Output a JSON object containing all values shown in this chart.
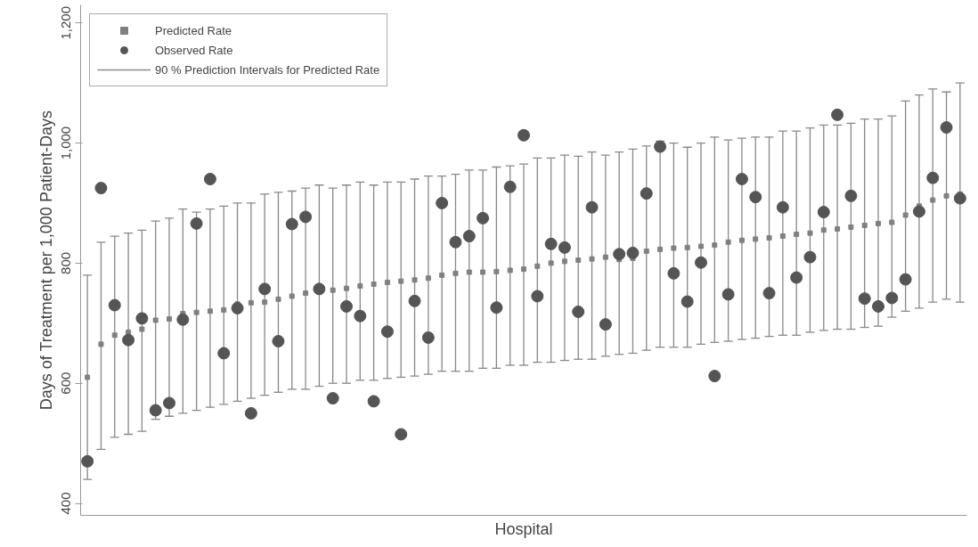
{
  "chart_data": {
    "type": "scatter",
    "xlabel": "Hospital",
    "ylabel": "Days of Treatment per 1,000 Patient-Days",
    "categories": [
      null,
      null,
      null,
      null,
      null,
      null,
      null,
      null,
      null,
      null,
      null,
      null,
      null,
      null,
      null,
      null,
      null,
      null,
      null,
      null,
      null,
      null,
      null,
      null,
      null,
      null,
      null,
      null,
      null,
      null,
      null,
      null,
      null,
      null,
      null,
      null,
      null,
      null,
      null,
      null,
      null,
      null,
      null,
      null,
      null,
      null,
      null,
      null,
      null,
      null,
      null,
      null,
      null,
      null,
      null,
      null,
      null,
      null,
      null,
      null,
      null,
      null,
      null,
      null,
      null
    ],
    "ylim": [
      380,
      1230
    ],
    "yticks": [
      400,
      600,
      800,
      {
        "value": 1000,
        "label": "1,000"
      },
      {
        "value": 1200,
        "label": "1,200"
      }
    ],
    "annotations": [
      "90 % Prediction Intervals for Predicted Rate"
    ],
    "grid": false,
    "legend": "top left",
    "tick_labels": "y",
    "series": [
      {
        "name": "Predicted Rate",
        "color": "#808080",
        "marker": "square",
        "values": [
          610,
          665,
          680,
          685,
          690,
          705,
          707,
          716,
          718,
          720,
          722,
          732,
          734,
          735,
          740,
          745,
          750,
          752,
          755,
          758,
          762,
          765,
          768,
          770,
          772,
          775,
          780,
          783,
          785,
          785,
          786,
          788,
          790,
          795,
          800,
          803,
          805,
          807,
          810,
          806,
          808,
          820,
          823,
          825,
          826,
          828,
          830,
          835,
          838,
          840,
          842,
          845,
          848,
          850,
          855,
          857,
          860,
          863,
          866,
          868,
          880,
          895,
          905,
          912,
          915
        ],
        "errors": [
          [
            440,
            780
          ],
          [
            490,
            835
          ],
          [
            510,
            845
          ],
          [
            515,
            850
          ],
          [
            520,
            855
          ],
          [
            540,
            870
          ],
          [
            545,
            875
          ],
          [
            550,
            890
          ],
          [
            555,
            885
          ],
          [
            560,
            890
          ],
          [
            565,
            895
          ],
          [
            570,
            900
          ],
          [
            575,
            900
          ],
          [
            580,
            915
          ],
          [
            585,
            918
          ],
          [
            590,
            920
          ],
          [
            590,
            925
          ],
          [
            595,
            930
          ],
          [
            600,
            925
          ],
          [
            600,
            930
          ],
          [
            605,
            935
          ],
          [
            605,
            930
          ],
          [
            608,
            935
          ],
          [
            610,
            935
          ],
          [
            612,
            940
          ],
          [
            615,
            945
          ],
          [
            620,
            945
          ],
          [
            620,
            948
          ],
          [
            620,
            955
          ],
          [
            625,
            955
          ],
          [
            625,
            960
          ],
          [
            630,
            962
          ],
          [
            630,
            965
          ],
          [
            635,
            975
          ],
          [
            635,
            975
          ],
          [
            638,
            980
          ],
          [
            640,
            978
          ],
          [
            640,
            985
          ],
          [
            645,
            980
          ],
          [
            648,
            985
          ],
          [
            650,
            990
          ],
          [
            655,
            995
          ],
          [
            660,
            1003
          ],
          [
            660,
            1000
          ],
          [
            660,
            993
          ],
          [
            665,
            1000
          ],
          [
            668,
            1010
          ],
          [
            670,
            1005
          ],
          [
            673,
            1008
          ],
          [
            675,
            1010
          ],
          [
            678,
            1010
          ],
          [
            680,
            1020
          ],
          [
            680,
            1020
          ],
          [
            685,
            1025
          ],
          [
            688,
            1030
          ],
          [
            690,
            1030
          ],
          [
            690,
            1033
          ],
          [
            693,
            1040
          ],
          [
            695,
            1040
          ],
          [
            710,
            1045
          ],
          [
            720,
            1070
          ],
          [
            725,
            1080
          ],
          [
            735,
            1090
          ],
          [
            740,
            1085
          ],
          [
            735,
            1100
          ]
        ],
        "line_style": "solid"
      },
      {
        "name": "Observed Rate",
        "color": "#555555",
        "marker": "circle",
        "values": [
          470,
          925,
          730,
          672,
          708,
          555,
          567,
          706,
          866,
          940,
          650,
          725,
          550,
          757,
          670,
          865,
          877,
          757,
          575,
          728,
          712,
          570,
          686,
          515,
          737,
          676,
          900,
          835,
          845,
          875,
          726,
          927,
          1013,
          745,
          832,
          826,
          719,
          893,
          698,
          815,
          817,
          916,
          994,
          783,
          736,
          801,
          612,
          748,
          940,
          910,
          750,
          893,
          776,
          810,
          885,
          1047,
          912,
          741,
          728,
          742,
          773,
          886,
          942,
          1026,
          908
        ]
      }
    ]
  }
}
